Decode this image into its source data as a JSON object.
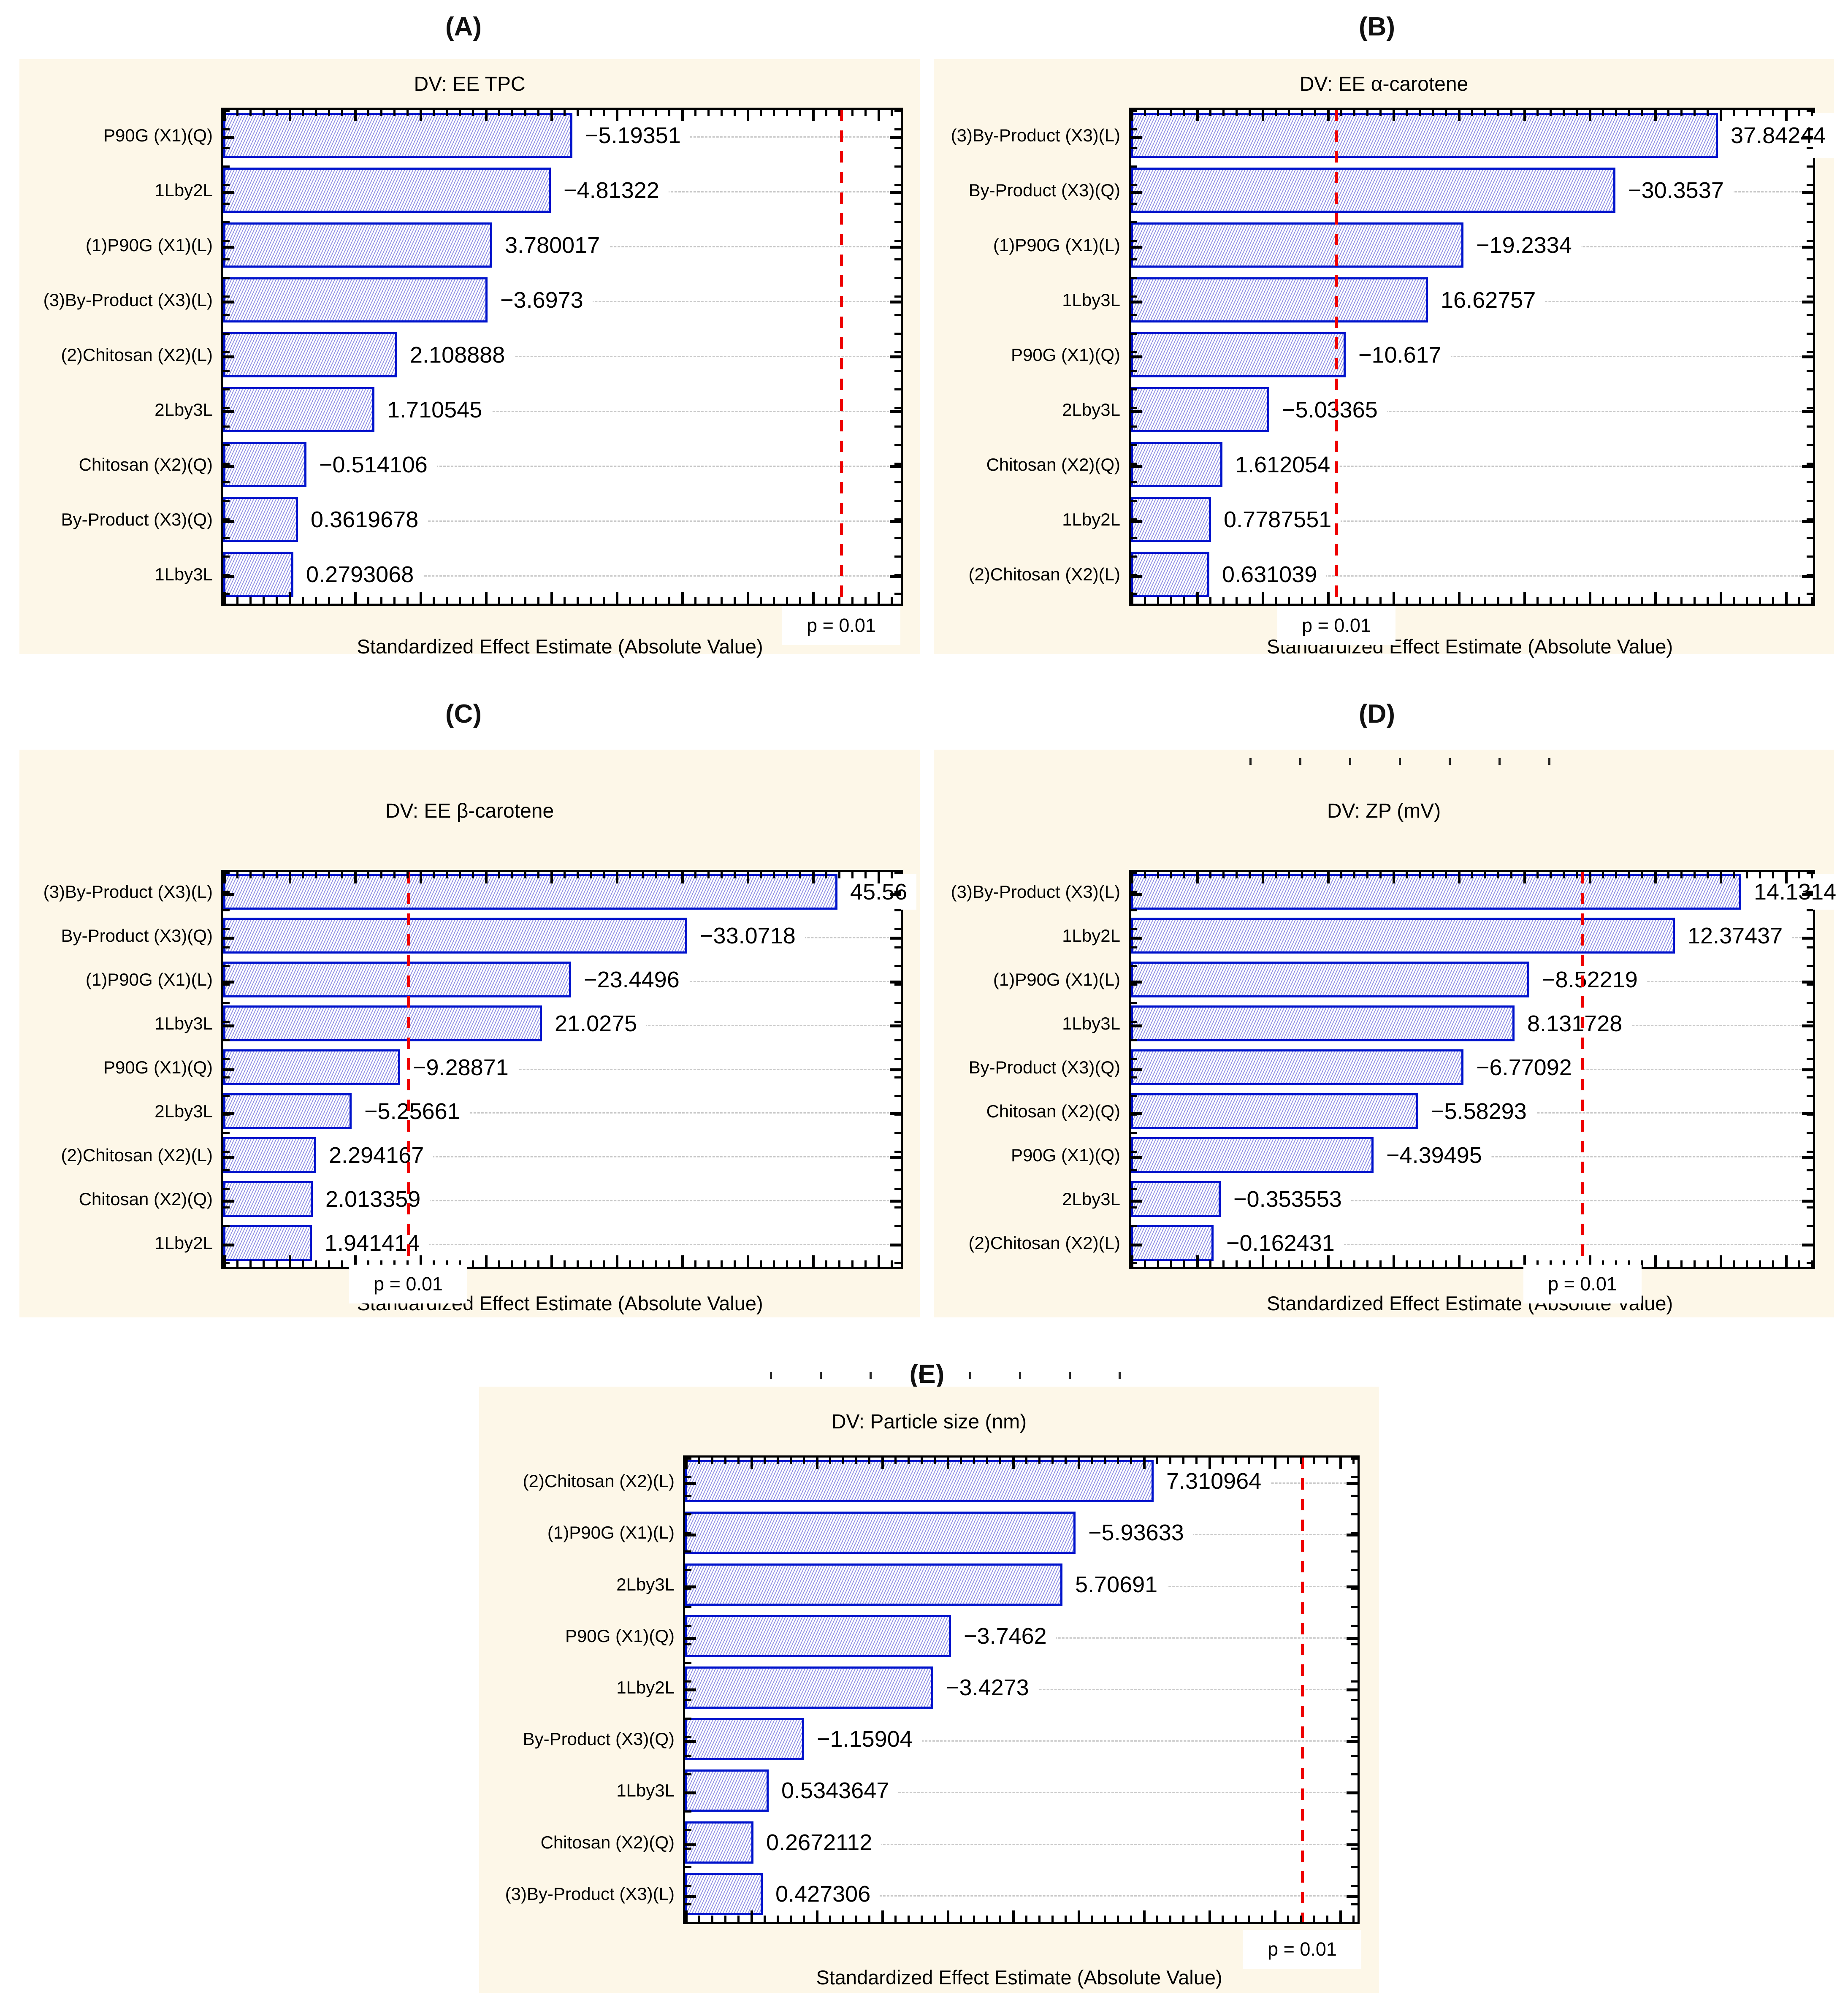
{
  "figure": {
    "xlabel": "Standardized Effect Estimate (Absolute Value)",
    "p_label": "p = 0.01"
  },
  "colors": {
    "panel_background": "#FDF7E8",
    "plot_background": "#FFFFFF",
    "bar_border": "#0013CC",
    "bar_hatch": "#2828CD",
    "significance_line": "#EE0000",
    "gridline": "#C9C9C9",
    "axis": "#000000",
    "text": "#000000"
  },
  "chart_data": [
    {
      "type": "bar",
      "orientation": "horizontal",
      "panel_label": "(A)",
      "title": "DV: EE TPC",
      "xlabel": "Standardized Effect Estimate (Absolute Value)",
      "legend": false,
      "grid": "horizontal dashed per category",
      "categories": [
        "P90G (X1)(Q)",
        "1Lby2L",
        "(1)P90G (X1)(L)",
        "(3)By-Product (X3)(L)",
        "(2)Chitosan (X2)(L)",
        "2Lby3L",
        "Chitosan (X2)(Q)",
        "By-Product (X3)(Q)",
        "1Lby3L"
      ],
      "values": [
        -5.19351,
        -4.81322,
        3.780017,
        -3.6973,
        2.108888,
        1.710545,
        -0.514106,
        0.3619678,
        0.2793068
      ],
      "value_labels": [
        "−5.19351",
        "−4.81322",
        "3.780017",
        "−3.6973",
        "2.108888",
        "1.710545",
        "−0.514106",
        "0.3619678",
        "0.2793068"
      ],
      "significance_line": {
        "label": "p = 0.01",
        "value": 9.925
      },
      "xaxis": {
        "min": -0.95,
        "max": 10.97,
        "note": "bars drawn as absolute values from axis minimum"
      },
      "clipped_axis_artifact": false
    },
    {
      "type": "bar",
      "orientation": "horizontal",
      "panel_label": "(B)",
      "title": "DV: EE α-carotene",
      "xlabel": "Standardized Effect Estimate (Absolute Value)",
      "legend": false,
      "grid": "horizontal dashed per category",
      "categories": [
        "(3)By-Product (X3)(L)",
        "By-Product (X3)(Q)",
        "(1)P90G (X1)(L)",
        "1Lby3L",
        "P90G (X1)(Q)",
        "2Lby3L",
        "Chitosan (X2)(Q)",
        "1Lby2L",
        "(2)Chitosan (X2)(L)"
      ],
      "values": [
        37.84244,
        -30.3537,
        -19.2334,
        16.62757,
        -10.617,
        -5.03365,
        1.612054,
        0.7787551,
        0.631039
      ],
      "value_labels": [
        "37.84244",
        "−30.3537",
        "−19.2334",
        "16.62757",
        "−10.617",
        "−5.03365",
        "1.612054",
        "0.7787551",
        "0.631039"
      ],
      "significance_line": {
        "label": "p = 0.01",
        "value": 9.925
      },
      "xaxis": {
        "min": -5.1,
        "max": 44.8,
        "note": "bars drawn as absolute values from axis minimum"
      },
      "clipped_axis_artifact": false
    },
    {
      "type": "bar",
      "orientation": "horizontal",
      "panel_label": "(C)",
      "title": "DV: EE β-carotene",
      "xlabel": "Standardized Effect Estimate (Absolute Value)",
      "legend": false,
      "grid": "horizontal dashed per category",
      "categories": [
        "(3)By-Product (X3)(L)",
        "By-Product (X3)(Q)",
        "(1)P90G (X1)(L)",
        "1Lby3L",
        "P90G (X1)(Q)",
        "2Lby3L",
        "(2)Chitosan (X2)(L)",
        "Chitosan (X2)(Q)",
        "1Lby2L"
      ],
      "values": [
        45.56,
        -33.0718,
        -23.4496,
        21.0275,
        -9.28871,
        -5.25661,
        2.294167,
        2.013359,
        1.941414
      ],
      "value_labels": [
        "45.56",
        "−33.0718",
        "−23.4496",
        "21.0275",
        "−9.28871",
        "−5.25661",
        "2.294167",
        "2.013359",
        "1.941414"
      ],
      "significance_line": {
        "label": "p = 0.01",
        "value": 9.925
      },
      "xaxis": {
        "min": -5.4,
        "max": 50.8,
        "note": "bars drawn as absolute values from axis minimum"
      },
      "clipped_axis_artifact": false
    },
    {
      "type": "bar",
      "orientation": "horizontal",
      "panel_label": "(D)",
      "title": "DV: ZP (mV)",
      "xlabel": "Standardized Effect Estimate (Absolute Value)",
      "legend": false,
      "grid": "horizontal dashed per category",
      "categories": [
        "(3)By-Product (X3)(L)",
        "1Lby2L",
        "(1)P90G (X1)(L)",
        "1Lby3L",
        "By-Product (X3)(Q)",
        "Chitosan (X2)(Q)",
        "P90G (X1)(Q)",
        "2Lby3L",
        "(2)Chitosan (X2)(L)"
      ],
      "values": [
        14.1314,
        12.37437,
        -8.52219,
        8.131728,
        -6.77092,
        -5.58293,
        -4.39495,
        -0.353553,
        -0.162431
      ],
      "value_labels": [
        "14.1314",
        "12.37437",
        "−8.52219",
        "8.131728",
        "−6.77092",
        "−5.58293",
        "−4.39495",
        "−0.353553",
        "−0.162431"
      ],
      "significance_line": {
        "label": "p = 0.01",
        "value": 9.925
      },
      "xaxis": {
        "min": -2.03,
        "max": 16.03,
        "note": "bars drawn as absolute values from axis minimum"
      },
      "clipped_axis_artifact": true
    },
    {
      "type": "bar",
      "orientation": "horizontal",
      "panel_label": "(E)",
      "title": "DV: Particle size (nm)",
      "xlabel": "Standardized Effect Estimate (Absolute Value)",
      "legend": false,
      "grid": "horizontal dashed per category",
      "categories": [
        "(2)Chitosan (X2)(L)",
        "(1)P90G (X1)(L)",
        "2Lby3L",
        "P90G (X1)(Q)",
        "1Lby2L",
        "By-Product (X3)(Q)",
        "1Lby3L",
        "Chitosan (X2)(Q)",
        "(3)By-Product (X3)(L)"
      ],
      "values": [
        7.310964,
        -5.93633,
        5.70691,
        -3.7462,
        -3.4273,
        -1.15904,
        0.5343647,
        0.2672112,
        0.427306
      ],
      "value_labels": [
        "7.310964",
        "−5.93633",
        "5.70691",
        "−3.7462",
        "−3.4273",
        "−1.15904",
        "0.5343647",
        "0.2672112",
        "0.427306"
      ],
      "significance_line": {
        "label": "p = 0.01",
        "value": 9.925
      },
      "xaxis": {
        "min": -0.94,
        "max": 10.9,
        "note": "bars drawn as absolute values from axis minimum"
      },
      "clipped_axis_artifact": true
    }
  ]
}
